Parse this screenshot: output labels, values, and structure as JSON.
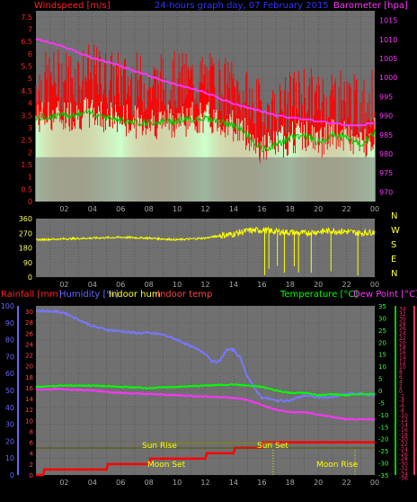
{
  "header": {
    "windspeed_label": "Windspeed [m/s]",
    "title": "24-hours graph day, 07 February 2015",
    "barometer_label": "Barometer [hpa]"
  },
  "bottom_header": {
    "rainfall_label": "Rainfall [mm]",
    "humidity_label": "Humidity [%]",
    "indoor_hum_label": "Indoor hum",
    "indoor_temp_label": "Indoor temp",
    "temperature_label": "Temperature [°C]",
    "dewpoint_label": "Dew Point [°C]"
  },
  "annotations": {
    "sun_rise": "Sun Rise",
    "sun_set": "Sun Set",
    "moon_set": "Moon Set",
    "moon_rise": "Moon Rise"
  },
  "colors": {
    "windspeed": "#ff0000",
    "gust_fill": "#ff0000",
    "wind_avg": "#00cc00",
    "wind_fill": "#ccffcc",
    "barometer": "#ff33ff",
    "direction": "#ffff00",
    "humidity": "#7777ff",
    "temperature": "#00ff00",
    "dewpoint": "#ff33ff",
    "rain": "#ff0000",
    "indoor_temp": "#ff4444",
    "humidity_axis": "#6666ff",
    "temp_axis": "#00cc00",
    "dew_axis": "#ff3366"
  },
  "chart_data": [
    {
      "type": "line",
      "name": "wind-barometer",
      "x_ticks": [
        "02",
        "04",
        "06",
        "08",
        "10",
        "12",
        "14",
        "16",
        "18",
        "20",
        "22",
        "00"
      ],
      "y_left_ticks": [
        "0",
        "0.5",
        "1",
        "1.5",
        "2",
        "2.5",
        "3",
        "3.5",
        "4",
        "4.5",
        "5",
        "5.5",
        "6",
        "6.5",
        "7",
        "7.5"
      ],
      "y_right_ticks": [
        "970",
        "975",
        "980",
        "985",
        "990",
        "995",
        "1000",
        "1005",
        "1010",
        "1015"
      ],
      "ylim_left": [
        0,
        7.75
      ],
      "ylim_right": [
        967.5,
        1017.5
      ],
      "xlim": [
        0,
        24
      ],
      "barometer": {
        "x": [
          0,
          1,
          2,
          3,
          4,
          5,
          6,
          7,
          8,
          9,
          10,
          11,
          12,
          13,
          14,
          15,
          16,
          17,
          18,
          19,
          20,
          21,
          22,
          23,
          24
        ],
        "y": [
          1010,
          1009,
          1008,
          1006.5,
          1005,
          1004,
          1003,
          1001.5,
          1000.5,
          999,
          998,
          997,
          996,
          994.5,
          993,
          992,
          991,
          990,
          989.5,
          989,
          988.5,
          988,
          987.5,
          987.5,
          988
        ]
      },
      "gust_envelope": {
        "x": [
          0,
          2,
          4,
          6,
          8,
          10,
          12,
          14,
          15,
          16,
          17,
          18,
          19,
          20,
          21,
          22,
          23,
          24
        ],
        "y": [
          4.2,
          4.5,
          4.6,
          4.3,
          4.2,
          4.3,
          4.3,
          4.0,
          3.5,
          3.1,
          3.0,
          3.5,
          3.8,
          3.5,
          3.8,
          3.6,
          3.2,
          3.7
        ]
      },
      "wind_average": {
        "x": [
          0,
          2,
          4,
          6,
          8,
          10,
          12,
          14,
          15,
          16,
          17,
          18,
          19,
          20,
          21,
          22,
          23,
          24
        ],
        "y": [
          3.4,
          3.5,
          3.6,
          3.3,
          3.2,
          3.3,
          3.4,
          3.1,
          2.7,
          2.1,
          2.3,
          2.6,
          2.7,
          2.4,
          2.7,
          2.6,
          2.3,
          2.8
        ]
      }
    },
    {
      "type": "scatter",
      "name": "wind-direction",
      "x_ticks": [
        "02",
        "04",
        "06",
        "08",
        "10",
        "12",
        "14",
        "16",
        "18",
        "20",
        "22",
        "00"
      ],
      "y_ticks": [
        "0",
        "90",
        "180",
        "270",
        "360"
      ],
      "y_right_labels": [
        "N",
        "W",
        "S",
        "E",
        "N"
      ],
      "ylim": [
        0,
        360
      ],
      "xlim": [
        0,
        24
      ],
      "direction": {
        "x": [
          0,
          2,
          4,
          6,
          8,
          10,
          12,
          13,
          14,
          15,
          16,
          17,
          18,
          19,
          20,
          21,
          22,
          23,
          24
        ],
        "y": [
          230,
          235,
          240,
          245,
          240,
          230,
          240,
          255,
          265,
          285,
          290,
          280,
          275,
          270,
          280,
          285,
          280,
          270,
          280
        ]
      }
    },
    {
      "type": "line",
      "name": "temp-humidity-rain",
      "x_ticks": [
        "02",
        "04",
        "06",
        "08",
        "10",
        "12",
        "14",
        "16",
        "18",
        "20",
        "22",
        "00"
      ],
      "humidity_ticks": [
        "0",
        "10",
        "20",
        "30",
        "40",
        "50",
        "60",
        "70",
        "80",
        "90",
        "100"
      ],
      "rain_ticks": [
        "0",
        "2",
        "4",
        "6",
        "8",
        "10",
        "12",
        "14",
        "16",
        "18",
        "20",
        "22",
        "24",
        "26",
        "28",
        "30"
      ],
      "temp_ticks": [
        "-35",
        "-30",
        "-25",
        "-20",
        "-15",
        "-10",
        "-5",
        "0",
        "5",
        "10",
        "15",
        "20",
        "25",
        "30",
        "35"
      ],
      "dew_ticks": [
        "-36",
        "-34",
        "-32",
        "-30",
        "-28",
        "-26",
        "-24",
        "-22",
        "-20",
        "-18",
        "-16",
        "-14",
        "-12",
        "-10",
        "-8",
        "-6",
        "-4",
        "-2",
        "0",
        "2",
        "4",
        "6",
        "8",
        "10",
        "12",
        "14",
        "16",
        "18",
        "20",
        "22",
        "24",
        "26",
        "28",
        "30",
        "32",
        "34"
      ],
      "humidity_lim": [
        0,
        100
      ],
      "temp_lim": [
        -35,
        35
      ],
      "xlim": [
        0,
        24
      ],
      "humidity": {
        "x": [
          0,
          1,
          2,
          3,
          4,
          5,
          6,
          7,
          8,
          9,
          10,
          11,
          12,
          12.5,
          13,
          13.5,
          14,
          14.5,
          15,
          15.5,
          16,
          17,
          18,
          19,
          20,
          21,
          22,
          23,
          24
        ],
        "y": [
          97,
          97,
          96,
          92,
          88,
          86,
          85,
          84,
          84,
          83,
          80,
          76,
          72,
          67,
          67,
          74,
          74,
          69,
          58,
          51,
          46,
          44,
          44,
          47,
          46,
          46,
          48,
          48,
          47
        ]
      },
      "temperature": {
        "x": [
          0,
          2,
          4,
          6,
          8,
          10,
          12,
          14,
          15,
          16,
          17,
          18,
          19,
          20,
          21,
          22,
          23,
          24
        ],
        "y": [
          1.5,
          2,
          2,
          1.5,
          1,
          1.5,
          2,
          2.5,
          2,
          1.5,
          0,
          -1,
          -1,
          -2,
          -1.5,
          -2,
          -1.5,
          -1.5
        ]
      },
      "dewpoint": {
        "x": [
          0,
          2,
          4,
          6,
          8,
          10,
          12,
          14,
          15,
          16,
          17,
          18,
          19,
          20,
          21,
          22,
          23,
          24
        ],
        "y": [
          0.5,
          0.5,
          0,
          -1,
          -1.5,
          -2,
          -2.5,
          -3,
          -4,
          -6,
          -8,
          -9,
          -9,
          -10,
          -11,
          -12,
          -12,
          -12
        ]
      },
      "rain": {
        "x": [
          0,
          0.5,
          0.6,
          5,
          5.1,
          8,
          8.1,
          12,
          12.1,
          14,
          14.1,
          16,
          16.1,
          24
        ],
        "y": [
          0,
          0,
          1,
          1,
          2,
          2,
          3,
          3,
          4,
          4,
          5,
          5,
          6,
          6
        ]
      },
      "events": {
        "sun_rise_hour": 7.9,
        "sun_set_hour": 16.8,
        "moon_set_hour": 10.2,
        "moon_rise_hour": 22.6
      }
    }
  ]
}
